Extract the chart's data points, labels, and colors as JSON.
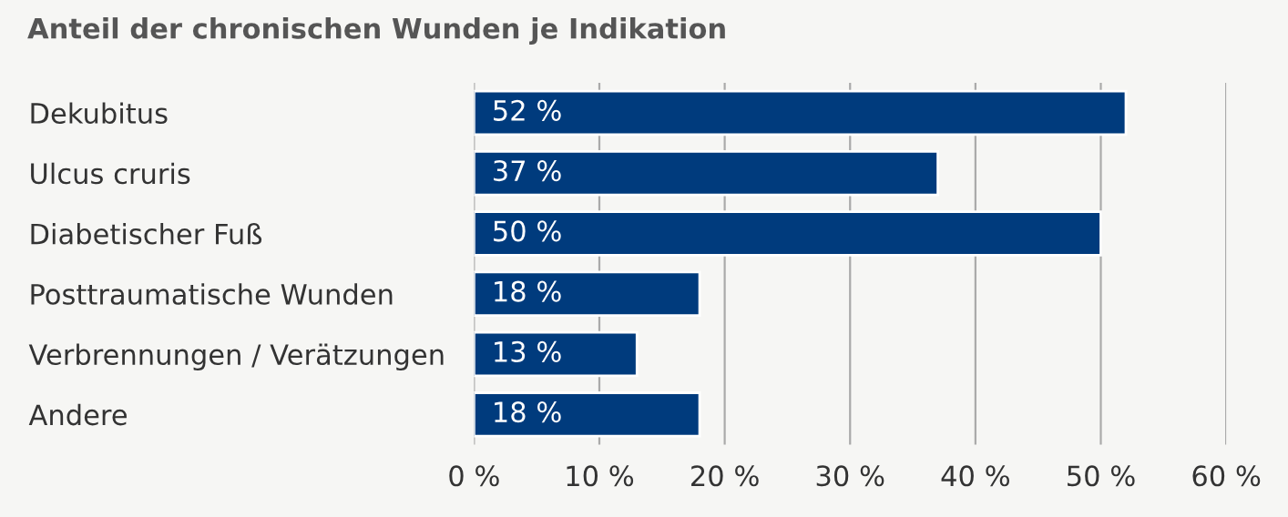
{
  "chart_data": {
    "type": "bar",
    "orientation": "horizontal",
    "title": "Anteil der chronischen Wunden je Indikation",
    "categories": [
      "Dekubitus",
      "Ulcus cruris",
      "Diabetischer Fuß",
      "Posttraumatische Wunden",
      "Verbrennungen / Verätzungen",
      "Andere"
    ],
    "values": [
      52,
      37,
      50,
      18,
      13,
      18
    ],
    "color": "#003b7d",
    "value_labels": [
      "52 %",
      "37 %",
      "50 %",
      "18 %",
      "13 %",
      "18 %"
    ],
    "xlim": [
      0,
      60
    ],
    "xticks": [
      {
        "value": 0,
        "label": "0 %"
      },
      {
        "value": 10,
        "label": "10 %"
      },
      {
        "value": 20,
        "label": "20 %"
      },
      {
        "value": 30,
        "label": "30 %"
      },
      {
        "value": 40,
        "label": "40 %"
      },
      {
        "value": 50,
        "label": "50 %"
      },
      {
        "value": 60,
        "label": "60 %"
      }
    ],
    "grid": "x",
    "legend": false
  }
}
